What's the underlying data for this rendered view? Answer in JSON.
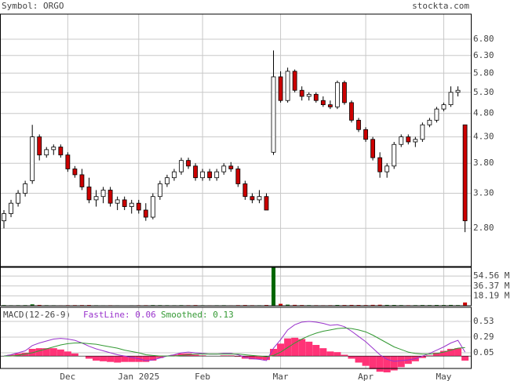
{
  "header": {
    "symbol": "Symbol: ORGO",
    "site": "stockta.com"
  },
  "chart_data": [
    {
      "type": "candlestick",
      "log_y": true,
      "grid": true,
      "up_color": "#ffffff",
      "down_color": "#cc0000",
      "categories": [
        null,
        null,
        null,
        null,
        null,
        null,
        null,
        null,
        null,
        "Dec",
        null,
        null,
        null,
        null,
        null,
        null,
        null,
        null,
        null,
        "Jan 2025",
        null,
        null,
        null,
        null,
        null,
        null,
        null,
        null,
        "Feb",
        null,
        null,
        null,
        null,
        null,
        null,
        null,
        null,
        null,
        null,
        "Mar",
        null,
        null,
        null,
        null,
        null,
        null,
        null,
        null,
        null,
        null,
        null,
        "Apr",
        null,
        null,
        null,
        null,
        null,
        null,
        null,
        null,
        null,
        null,
        "May",
        null,
        null,
        null
      ],
      "open": [
        2.9,
        3.0,
        3.15,
        3.3,
        3.5,
        4.3,
        3.95,
        4.05,
        4.1,
        3.95,
        3.7,
        3.6,
        3.4,
        3.2,
        3.25,
        3.35,
        3.15,
        3.2,
        3.1,
        3.15,
        3.05,
        2.95,
        3.25,
        3.45,
        3.55,
        3.65,
        3.85,
        3.75,
        3.55,
        3.65,
        3.55,
        3.65,
        3.75,
        3.7,
        3.45,
        3.25,
        3.2,
        3.25,
        4.0,
        5.7,
        5.1,
        5.85,
        5.35,
        5.2,
        5.25,
        5.1,
        5.0,
        4.95,
        5.55,
        5.05,
        4.65,
        4.45,
        4.25,
        3.9,
        3.65,
        3.75,
        4.15,
        4.3,
        4.2,
        4.25,
        4.55,
        4.65,
        4.9,
        5.0,
        5.3,
        4.55
      ],
      "high": [
        3.05,
        3.2,
        3.35,
        3.5,
        4.55,
        4.35,
        4.1,
        4.15,
        4.15,
        4.0,
        3.75,
        3.7,
        3.55,
        3.35,
        3.4,
        3.4,
        3.25,
        3.25,
        3.2,
        3.2,
        3.15,
        3.3,
        3.5,
        3.6,
        3.7,
        3.9,
        3.9,
        3.8,
        3.7,
        3.7,
        3.7,
        3.8,
        3.82,
        3.75,
        3.5,
        3.3,
        3.35,
        3.3,
        6.45,
        5.85,
        5.95,
        5.9,
        5.45,
        5.3,
        5.3,
        5.2,
        5.1,
        5.6,
        5.6,
        5.1,
        4.7,
        4.5,
        4.3,
        4.0,
        3.8,
        4.2,
        4.35,
        4.35,
        4.3,
        4.6,
        4.7,
        4.95,
        5.05,
        5.45,
        5.45,
        4.55
      ],
      "low": [
        2.8,
        2.95,
        3.1,
        3.25,
        3.45,
        3.85,
        3.9,
        3.95,
        3.9,
        3.65,
        3.55,
        3.35,
        3.15,
        3.1,
        3.15,
        3.1,
        3.05,
        3.05,
        3.0,
        3.0,
        2.9,
        2.92,
        3.2,
        3.4,
        3.5,
        3.6,
        3.7,
        3.5,
        3.5,
        3.5,
        3.5,
        3.6,
        3.65,
        3.4,
        3.2,
        3.15,
        3.15,
        3.05,
        3.95,
        5.05,
        5.05,
        5.3,
        5.1,
        5.1,
        5.05,
        4.95,
        4.9,
        4.9,
        5.0,
        4.6,
        4.4,
        4.2,
        3.85,
        3.55,
        3.55,
        3.7,
        4.1,
        4.15,
        4.1,
        4.2,
        4.5,
        4.6,
        4.85,
        4.95,
        5.2,
        2.75
      ],
      "close": [
        3.0,
        3.15,
        3.3,
        3.45,
        4.3,
        3.95,
        4.05,
        4.1,
        3.95,
        3.7,
        3.6,
        3.4,
        3.2,
        3.25,
        3.35,
        3.15,
        3.2,
        3.1,
        3.15,
        3.05,
        2.95,
        3.25,
        3.45,
        3.55,
        3.65,
        3.85,
        3.75,
        3.55,
        3.65,
        3.55,
        3.65,
        3.75,
        3.7,
        3.45,
        3.25,
        3.2,
        3.25,
        3.05,
        5.7,
        5.1,
        5.85,
        5.35,
        5.2,
        5.25,
        5.1,
        5.0,
        4.95,
        5.55,
        5.05,
        4.65,
        4.45,
        4.25,
        3.9,
        3.65,
        3.75,
        4.15,
        4.3,
        4.2,
        4.25,
        4.55,
        4.65,
        4.9,
        5.0,
        5.3,
        5.35,
        2.9
      ],
      "ylim": [
        2.34,
        7.65
      ],
      "yticks": [
        {
          "value": 6.8,
          "label": "6.80"
        },
        {
          "value": 6.3,
          "label": "6.30"
        },
        {
          "value": 5.8,
          "label": "5.80"
        },
        {
          "value": 5.3,
          "label": "5.30"
        },
        {
          "value": 4.8,
          "label": "4.80"
        },
        {
          "value": 4.3,
          "label": "4.30"
        },
        {
          "value": 3.8,
          "label": "3.80"
        },
        {
          "value": 3.3,
          "label": "3.30"
        },
        {
          "value": 2.8,
          "label": "2.80"
        }
      ]
    },
    {
      "type": "volume",
      "up_color": "#006600",
      "down_color": "#cc0000",
      "values": [
        1.2,
        0.9,
        1.0,
        1.1,
        2.5,
        1.5,
        1.0,
        0.9,
        0.8,
        1.0,
        1.1,
        1.2,
        1.3,
        0.9,
        0.8,
        0.9,
        0.8,
        0.7,
        0.8,
        0.9,
        1.0,
        1.2,
        1.1,
        1.0,
        0.9,
        1.1,
        1.0,
        1.2,
        0.9,
        0.8,
        0.9,
        1.0,
        0.8,
        1.1,
        1.3,
        1.0,
        0.9,
        1.4,
        70.0,
        3.5,
        2.0,
        1.6,
        1.3,
        1.1,
        1.0,
        0.9,
        1.0,
        1.4,
        1.3,
        1.5,
        1.4,
        1.2,
        1.6,
        1.8,
        1.5,
        1.4,
        1.2,
        1.0,
        1.1,
        1.3,
        1.2,
        1.4,
        1.3,
        1.5,
        1.2,
        6.0
      ],
      "ylim": [
        0,
        70.6
      ],
      "yticks": [
        {
          "value": 54.56,
          "label": "54.56 M"
        },
        {
          "value": 36.37,
          "label": "36.37 M"
        },
        {
          "value": 18.19,
          "label": "18.19 M"
        }
      ]
    },
    {
      "type": "macd",
      "title": "MACD(12-26-9)",
      "series": [
        {
          "name": "FastLine: 0.06",
          "color": "#9933cc",
          "values": [
            0.0,
            0.02,
            0.05,
            0.08,
            0.16,
            0.2,
            0.23,
            0.26,
            0.27,
            0.26,
            0.24,
            0.2,
            0.15,
            0.11,
            0.08,
            0.05,
            0.02,
            0.0,
            -0.02,
            -0.04,
            -0.07,
            -0.06,
            -0.03,
            0.0,
            0.02,
            0.05,
            0.06,
            0.05,
            0.04,
            0.03,
            0.03,
            0.04,
            0.04,
            0.02,
            -0.02,
            -0.04,
            -0.05,
            -0.07,
            0.12,
            0.25,
            0.4,
            0.48,
            0.52,
            0.53,
            0.52,
            0.5,
            0.47,
            0.48,
            0.45,
            0.38,
            0.3,
            0.22,
            0.12,
            0.02,
            -0.05,
            -0.08,
            -0.07,
            -0.06,
            -0.04,
            0.0,
            0.04,
            0.09,
            0.14,
            0.2,
            0.24,
            0.06
          ]
        },
        {
          "name": "Smoothed: 0.13",
          "color": "#339933",
          "values": [
            0.0,
            0.0,
            0.01,
            0.03,
            0.05,
            0.08,
            0.11,
            0.14,
            0.17,
            0.19,
            0.2,
            0.2,
            0.19,
            0.18,
            0.16,
            0.14,
            0.12,
            0.09,
            0.07,
            0.05,
            0.02,
            0.01,
            0.0,
            0.0,
            0.0,
            0.01,
            0.02,
            0.03,
            0.03,
            0.03,
            0.03,
            0.03,
            0.03,
            0.03,
            0.02,
            0.01,
            0.0,
            -0.01,
            0.01,
            0.06,
            0.13,
            0.2,
            0.26,
            0.31,
            0.35,
            0.38,
            0.4,
            0.42,
            0.43,
            0.42,
            0.4,
            0.37,
            0.32,
            0.26,
            0.2,
            0.14,
            0.1,
            0.06,
            0.04,
            0.03,
            0.03,
            0.04,
            0.06,
            0.09,
            0.12,
            0.13
          ]
        }
      ],
      "histogram": {
        "color": "#ff3377",
        "values": [
          0.0,
          0.02,
          0.04,
          0.05,
          0.11,
          0.12,
          0.12,
          0.12,
          0.1,
          0.07,
          0.04,
          0.0,
          -0.04,
          -0.07,
          -0.08,
          -0.09,
          -0.1,
          -0.09,
          -0.09,
          -0.09,
          -0.09,
          -0.07,
          -0.03,
          0.0,
          0.02,
          0.04,
          0.04,
          0.02,
          0.01,
          0.0,
          0.0,
          0.01,
          0.01,
          -0.01,
          -0.04,
          -0.05,
          -0.05,
          -0.06,
          0.11,
          0.19,
          0.27,
          0.28,
          0.26,
          0.22,
          0.17,
          0.12,
          0.07,
          0.06,
          0.02,
          -0.04,
          -0.1,
          -0.15,
          -0.2,
          -0.24,
          -0.25,
          -0.22,
          -0.17,
          -0.12,
          -0.08,
          -0.03,
          0.01,
          0.05,
          0.08,
          0.11,
          0.12,
          -0.07
        ]
      },
      "ylim": [
        -0.19,
        0.746
      ],
      "yticks": [
        0.53,
        0.29,
        0.05
      ]
    }
  ]
}
